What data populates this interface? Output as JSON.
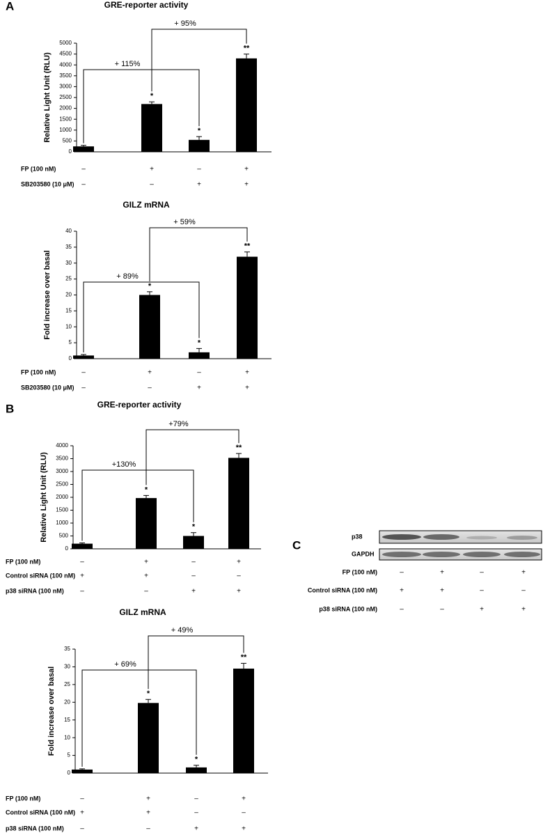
{
  "chart_data": [
    {
      "type": "bar",
      "panel": "A",
      "title": "GRE-reporter activity",
      "ylabel": "Relative Light Unit (RLU)",
      "ylim": [
        0,
        5000
      ],
      "yticks": [
        0,
        500,
        1000,
        1500,
        2000,
        2500,
        3000,
        3500,
        4000,
        4500,
        5000
      ],
      "values": [
        250,
        2200,
        550,
        4300
      ],
      "errors": [
        50,
        100,
        150,
        200
      ],
      "stars": [
        null,
        "*",
        "*",
        "**"
      ],
      "color": "#000000",
      "comparisons": [
        "+ 115%",
        "+ 95%"
      ],
      "conditions": [
        {
          "label": "FP (100 nM)",
          "signs": [
            "–",
            "+",
            "–",
            "+"
          ]
        },
        {
          "label": "SB203580 (10 μM)",
          "signs": [
            "–",
            "–",
            "+",
            "+"
          ]
        }
      ]
    },
    {
      "type": "bar",
      "title": "GILZ mRNA",
      "ylabel": "Fold increase over basal",
      "ylim": [
        0,
        40
      ],
      "yticks": [
        0,
        5,
        10,
        15,
        20,
        25,
        30,
        35,
        40
      ],
      "values": [
        1,
        20,
        2,
        32
      ],
      "errors": [
        0.3,
        1,
        1.2,
        1.5
      ],
      "stars": [
        null,
        "*",
        "*",
        "**"
      ],
      "color": "#000000",
      "comparisons": [
        "+ 89%",
        "+ 59%"
      ],
      "conditions": [
        {
          "label": "FP (100 nM)",
          "signs": [
            "–",
            "+",
            "–",
            "+"
          ]
        },
        {
          "label": "SB203580 (10 μM)",
          "signs": [
            "–",
            "–",
            "+",
            "+"
          ]
        }
      ]
    },
    {
      "type": "bar",
      "panel": "B",
      "title": "GRE-reporter activity",
      "ylabel": "Relative Light Unit (RLU)",
      "ylim": [
        0,
        4000
      ],
      "yticks": [
        0,
        500,
        1000,
        1500,
        2000,
        2500,
        3000,
        3500,
        4000
      ],
      "values": [
        200,
        1970,
        500,
        3530
      ],
      "errors": [
        30,
        100,
        130,
        170
      ],
      "stars": [
        null,
        "*",
        "*",
        "**"
      ],
      "color": "#000000",
      "comparisons": [
        "+130%",
        "+79%"
      ],
      "conditions": [
        {
          "label": "FP (100 nM)",
          "signs": [
            "–",
            "+",
            "–",
            "+"
          ]
        },
        {
          "label": "Control siRNA (100 nM)",
          "signs": [
            "+",
            "+",
            "–",
            "–"
          ]
        },
        {
          "label": "p38 siRNA (100 nM)",
          "signs": [
            "–",
            "–",
            "+",
            "+"
          ]
        }
      ]
    },
    {
      "type": "bar",
      "title": "GILZ mRNA",
      "ylabel": "Fold increase over basal",
      "ylim": [
        0,
        35
      ],
      "yticks": [
        0,
        5,
        10,
        15,
        20,
        25,
        30,
        35
      ],
      "values": [
        1,
        19.8,
        1.6,
        29.5
      ],
      "errors": [
        0.2,
        1,
        0.6,
        1.5
      ],
      "stars": [
        null,
        "*",
        "*",
        "**"
      ],
      "color": "#000000",
      "comparisons": [
        "+ 69%",
        "+ 49%"
      ],
      "conditions": [
        {
          "label": "FP (100 nM)",
          "signs": [
            "–",
            "+",
            "–",
            "+"
          ]
        },
        {
          "label": "Control siRNA (100 nM)",
          "signs": [
            "+",
            "+",
            "–",
            "–"
          ]
        },
        {
          "label": "p38 siRNA (100 nM)",
          "signs": [
            "–",
            "–",
            "+",
            "+"
          ]
        }
      ]
    }
  ],
  "blot": {
    "panel": "C",
    "bands": [
      "p38",
      "GAPDH"
    ],
    "conditions": [
      {
        "label": "FP (100 nM)",
        "signs": [
          "–",
          "+",
          "–",
          "+"
        ]
      },
      {
        "label": "Control siRNA (100 nM)",
        "signs": [
          "+",
          "+",
          "–",
          "–"
        ]
      },
      {
        "label": "p38 siRNA (100 nM)",
        "signs": [
          "–",
          "–",
          "+",
          "+"
        ]
      }
    ]
  }
}
